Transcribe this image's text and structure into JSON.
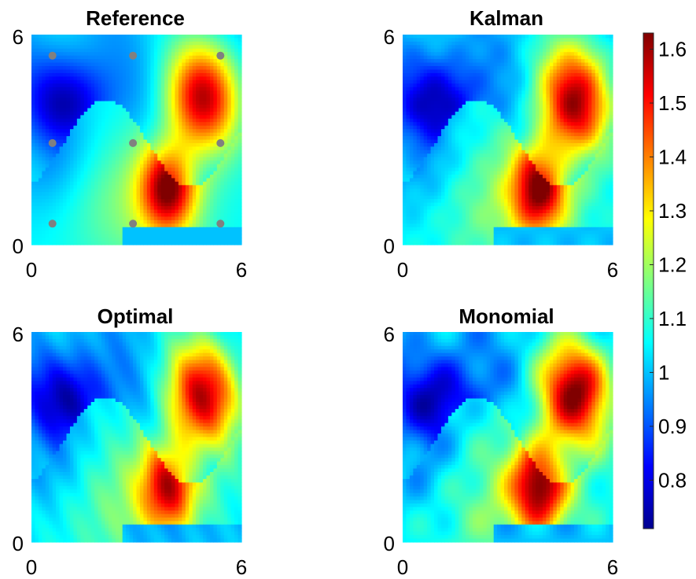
{
  "chart_data": [
    {
      "type": "heatmap",
      "title": "Reference",
      "xlim": [
        0,
        6
      ],
      "ylim": [
        0,
        6
      ],
      "x_ticks": [
        "0",
        "6"
      ],
      "y_ticks": [
        "0",
        "6"
      ],
      "markers": [
        {
          "x": 0.6,
          "y": 5.4
        },
        {
          "x": 2.9,
          "y": 5.4
        },
        {
          "x": 5.4,
          "y": 5.4
        },
        {
          "x": 0.6,
          "y": 2.9
        },
        {
          "x": 2.9,
          "y": 2.9
        },
        {
          "x": 5.4,
          "y": 2.9
        },
        {
          "x": 0.6,
          "y": 0.6
        },
        {
          "x": 2.9,
          "y": 0.6
        },
        {
          "x": 5.4,
          "y": 0.6
        }
      ],
      "marker_color": "#808080"
    },
    {
      "type": "heatmap",
      "title": "Kalman",
      "xlim": [
        0,
        6
      ],
      "ylim": [
        0,
        6
      ],
      "x_ticks": [
        "0",
        "6"
      ],
      "y_ticks": [
        "0",
        "6"
      ]
    },
    {
      "type": "heatmap",
      "title": "Optimal",
      "xlim": [
        0,
        6
      ],
      "ylim": [
        0,
        6
      ],
      "x_ticks": [
        "0",
        "6"
      ],
      "y_ticks": [
        "0",
        "6"
      ]
    },
    {
      "type": "heatmap",
      "title": "Monomial",
      "xlim": [
        0,
        6
      ],
      "ylim": [
        0,
        6
      ],
      "x_ticks": [
        "0",
        "6"
      ],
      "y_ticks": [
        "0",
        "6"
      ]
    }
  ],
  "colorbar": {
    "colormap": "jet",
    "range": [
      0.71,
      1.63
    ],
    "ticks": [
      "0.8",
      "0.9",
      "1",
      "1.1",
      "1.2",
      "1.3",
      "1.4",
      "1.5",
      "1.6"
    ],
    "tick_values": [
      0.8,
      0.9,
      1.0,
      1.1,
      1.2,
      1.3,
      1.4,
      1.5,
      1.6
    ]
  }
}
